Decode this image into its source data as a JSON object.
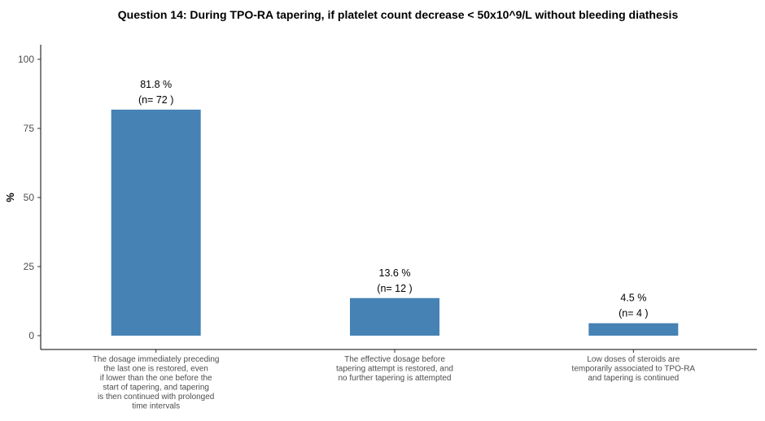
{
  "chart_data": {
    "type": "bar",
    "title": "Question 14: During TPO-RA tapering, if platelet count decrease < 50x10^9/L without bleeding diathesis",
    "ylabel": "%",
    "xlabel": "",
    "ylim": [
      0,
      100
    ],
    "yticks": [
      0,
      25,
      50,
      75,
      100
    ],
    "grid": false,
    "bar_color": "#4682B4",
    "categories": [
      [
        "The dosage immediately preceding",
        "the last one is restored, even",
        "if lower than the one before the",
        "start of tapering, and tapering",
        "is then continued with prolonged",
        "time intervals"
      ],
      [
        "The effective dosage before",
        "tapering attempt is restored, and",
        "no further tapering is attempted"
      ],
      [
        "Low doses of steroids are",
        "temporarily associated to TPO-RA",
        "and tapering is continued"
      ]
    ],
    "values": [
      81.8,
      13.6,
      4.5
    ],
    "data_labels": [
      [
        "81.8 %",
        "(n= 72 )"
      ],
      [
        "13.6 %",
        "(n= 12 )"
      ],
      [
        "4.5 %",
        "(n= 4 )"
      ]
    ]
  }
}
